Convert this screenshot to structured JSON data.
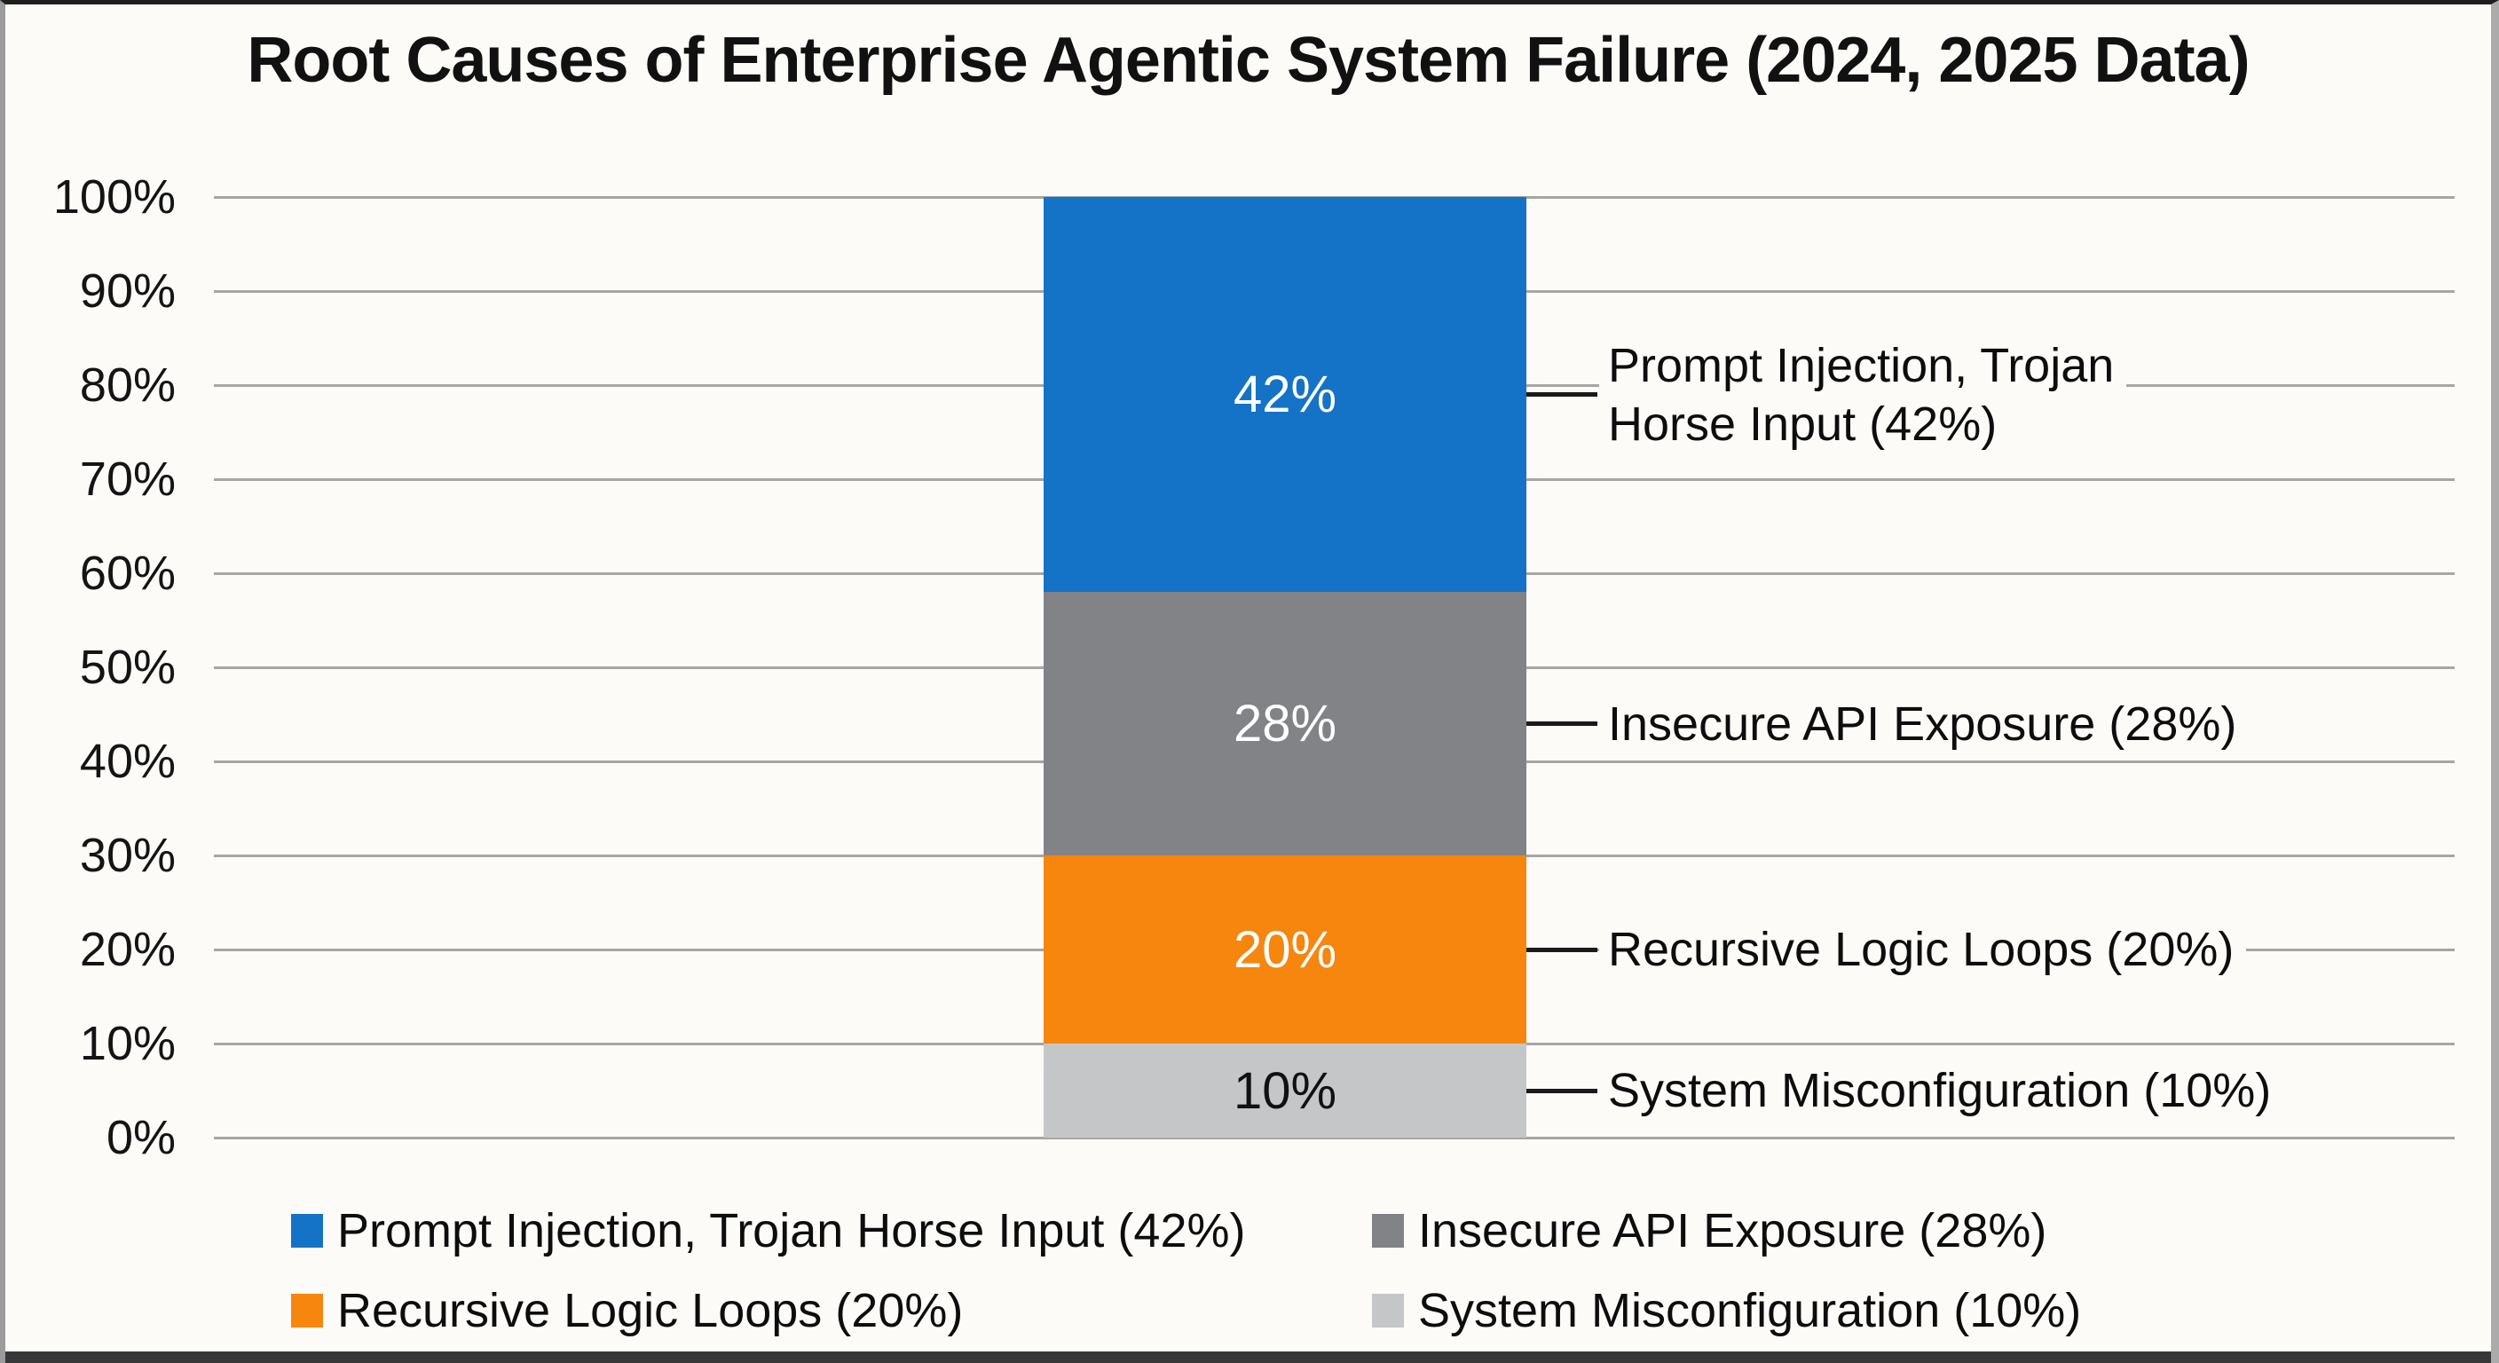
{
  "title": "Root Causes of Enterprise Agentic System Failure (2024, 2025 Data)",
  "colors": {
    "background": "#fcfbf8",
    "gridline": "#a8a6a3",
    "leader_line": "#1a1a1a",
    "blue": "#1473c6",
    "gray": "#828387",
    "orange": "#f6860e",
    "light_gray": "#c5c6c8"
  },
  "chart_data": {
    "type": "bar",
    "stacked": true,
    "title": "Root Causes of Enterprise Agentic System Failure (2024, 2025 Data)",
    "categories": [
      ""
    ],
    "xlabel": "",
    "ylabel": "",
    "ylim": [
      0,
      100
    ],
    "grid": true,
    "legend_position": "bottom",
    "y_ticks": [
      {
        "label": "100%",
        "value": 100
      },
      {
        "label": "90%",
        "value": 90
      },
      {
        "label": "80%",
        "value": 80
      },
      {
        "label": "70%",
        "value": 70
      },
      {
        "label": "60%",
        "value": 60
      },
      {
        "label": "50%",
        "value": 50
      },
      {
        "label": "40%",
        "value": 40
      },
      {
        "label": "30%",
        "value": 30
      },
      {
        "label": "20%",
        "value": 20
      },
      {
        "label": "10%",
        "value": 10
      },
      {
        "label": "0%",
        "value": 0
      }
    ],
    "series": [
      {
        "name": "Prompt Injection, Trojan Horse Input (42%)",
        "value": 42,
        "color": "#1473c6",
        "bar_label": "42%",
        "bar_label_color": "#ffffff",
        "callout_lines": [
          "Prompt Injection, Trojan",
          "Horse Input (42%)"
        ]
      },
      {
        "name": "Insecure API Exposure (28%)",
        "value": 28,
        "color": "#828387",
        "bar_label": "28%",
        "bar_label_color": "#ffffff",
        "callout_lines": [
          "Insecure API Exposure (28%)"
        ]
      },
      {
        "name": "Recursive Logic Loops (20%)",
        "value": 20,
        "color": "#f6860e",
        "bar_label": "20%",
        "bar_label_color": "#ffffff",
        "callout_lines": [
          "Recursive Logic Loops (20%)"
        ]
      },
      {
        "name": "System Misconfiguration (10%)",
        "value": 10,
        "color": "#c5c6c8",
        "bar_label": "10%",
        "bar_label_color": "#111111",
        "callout_lines": [
          "System Misconfiguration (10%)"
        ]
      }
    ],
    "legend": [
      {
        "label": "Prompt Injection, Trojan Horse Input (42%)",
        "color": "#1473c6"
      },
      {
        "label": "Insecure API Exposure (28%)",
        "color": "#828387"
      },
      {
        "label": "Recursive Logic Loops (20%)",
        "color": "#f6860e"
      },
      {
        "label": "System Misconfiguration (10%)",
        "color": "#c5c6c8"
      }
    ]
  }
}
